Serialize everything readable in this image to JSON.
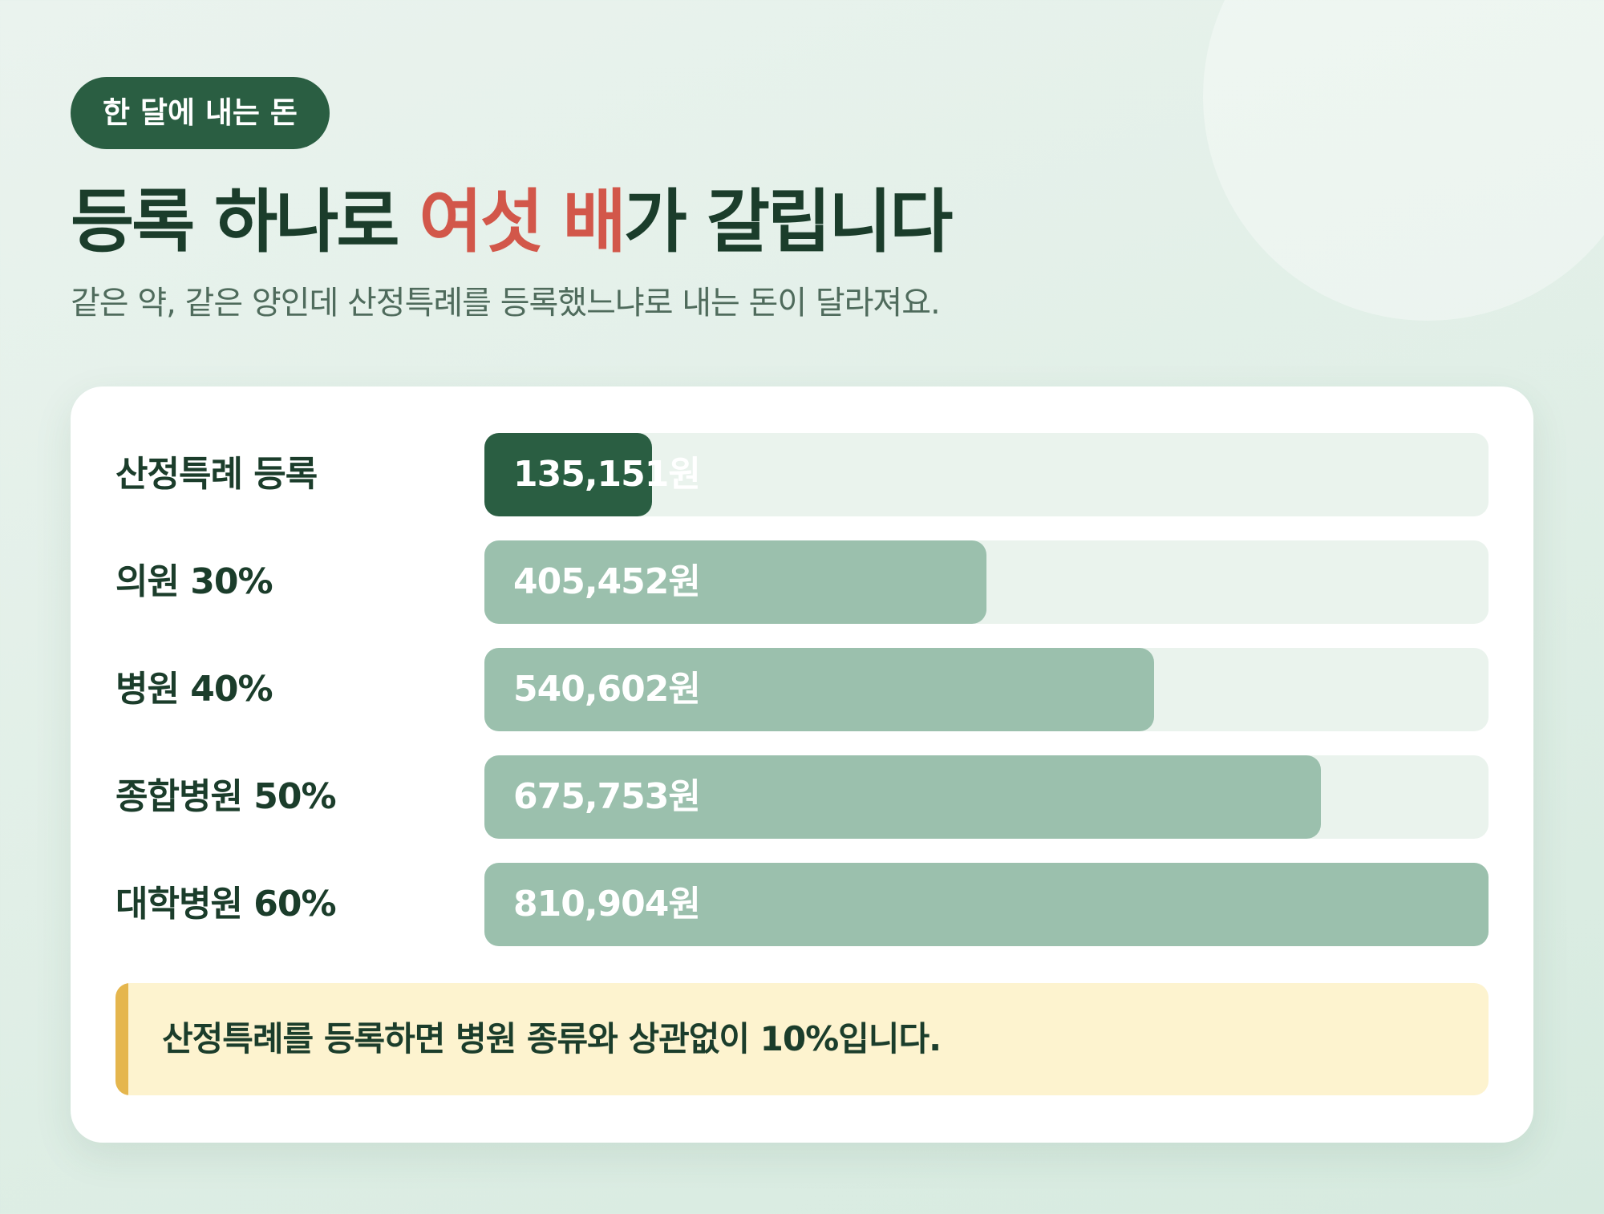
{
  "header": {
    "badge": "한 달에 내는 돈",
    "title_before": "등록 하나로 ",
    "title_accent": "여섯 배",
    "title_after": "가 갈립니다",
    "subtitle": "같은 약, 같은 양인데 산정특례를 등록했느냐로 내는 돈이 달라져요."
  },
  "colors": {
    "accent": "#d2574a",
    "highlight_bar": "#2a5e42",
    "normal_bar": "#9bc0ad",
    "track": "#eaf3ed",
    "note_bg": "#fdf3cf",
    "note_stripe": "#e5b64d"
  },
  "chart_data": {
    "type": "bar",
    "orientation": "horizontal",
    "categories": [
      "산정특례 등록",
      "의원 30%",
      "병원 40%",
      "종합병원 50%",
      "대학병원 60%"
    ],
    "values": [
      135151,
      405452,
      540602,
      675753,
      810904
    ],
    "value_labels": [
      "135,151원",
      "405,452원",
      "540,602원",
      "675,753원",
      "810,904원"
    ],
    "highlight_index": 0,
    "xlim": [
      0,
      810904
    ]
  },
  "note": {
    "text": "산정특례를 등록하면 병원 종류와 상관없이 10%입니다."
  }
}
